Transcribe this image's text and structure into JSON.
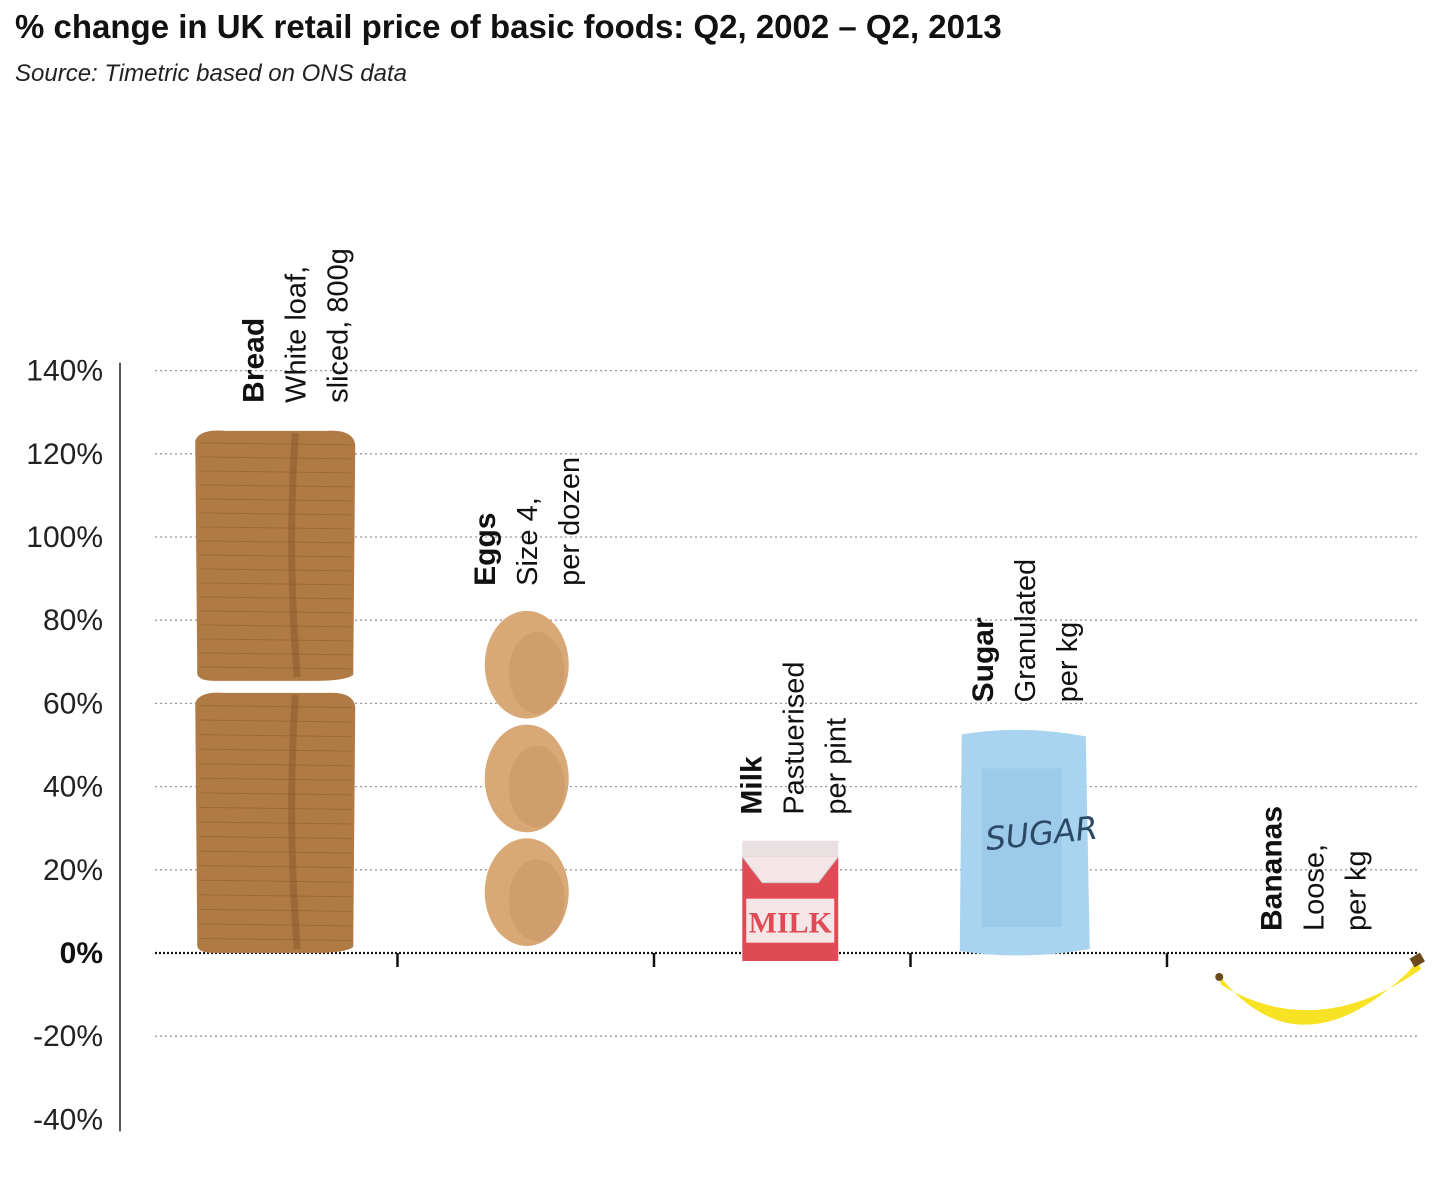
{
  "title": "% change in UK retail price of basic foods: Q2, 2002 – Q2, 2013",
  "subtitle": "Source: Timetric based on ONS data",
  "chart_data": {
    "type": "bar",
    "categories": [
      "Bread",
      "Eggs",
      "Milk",
      "Sugar",
      "Bananas"
    ],
    "descriptions": [
      [
        "White loaf,",
        "sliced, 800g"
      ],
      [
        "Size 4,",
        "per dozen"
      ],
      [
        "Pastuerised",
        "per pint"
      ],
      [
        "Granulated",
        "per kg"
      ],
      [
        "Loose,",
        "per kg"
      ]
    ],
    "values": [
      126,
      82,
      27,
      54,
      -21
    ],
    "ylim": [
      -40,
      140
    ],
    "yticks": [
      140,
      120,
      100,
      80,
      60,
      40,
      20,
      0,
      -20,
      -40
    ],
    "ytick_labels": [
      "140%",
      "120%",
      "100%",
      "80%",
      "60%",
      "40%",
      "20%",
      "0%",
      "-20%",
      "-40%"
    ],
    "grid": true,
    "pictogram_labels": {
      "milk": "MILK",
      "sugar": "SUGAR"
    },
    "colors": {
      "bread": "#b07a45",
      "bread_dark": "#8a5a2e",
      "egg": "#d9a877",
      "egg_dark": "#c08a58",
      "milk": "#e04a55",
      "milk_light": "#f4e6e6",
      "sugar": "#a9d4f0",
      "sugar_dark": "#7fb6df",
      "banana": "#f7e224",
      "banana_dark": "#6b4a1c",
      "grid": "#9a9a9a",
      "axis": "#222222"
    }
  }
}
